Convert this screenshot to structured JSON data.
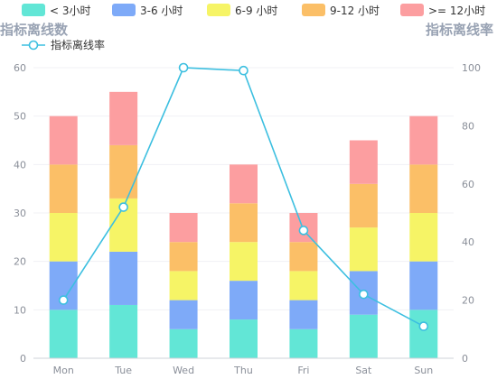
{
  "chart_data": {
    "type": "bar",
    "stacked": true,
    "categories": [
      "Mon",
      "Tue",
      "Wed",
      "Thu",
      "Fri",
      "Sat",
      "Sun"
    ],
    "series": [
      {
        "name": "< 3小时",
        "color": "#62e6d6",
        "values": [
          10,
          11,
          6,
          8,
          6,
          9,
          10
        ]
      },
      {
        "name": "3-6 小时",
        "color": "#7eaaf8",
        "values": [
          10,
          11,
          6,
          8,
          6,
          9,
          10
        ]
      },
      {
        "name": "6-9 小时",
        "color": "#f6f466",
        "values": [
          10,
          11,
          6,
          8,
          6,
          9,
          10
        ]
      },
      {
        "name": "9-12 小时",
        "color": "#fbbf67",
        "values": [
          10,
          11,
          6,
          8,
          6,
          9,
          10
        ]
      },
      {
        "name": ">= 12小时",
        "color": "#fc9ea0",
        "values": [
          10,
          11,
          6,
          8,
          6,
          9,
          10
        ]
      }
    ],
    "line_series": {
      "name": "指标离线率",
      "color": "#3cbfe0",
      "axis": "right",
      "values": [
        20,
        52,
        100,
        99,
        44,
        22,
        11
      ]
    },
    "ylabel": "指标离线数",
    "ylabel_right": "指标离线率",
    "ylim": [
      0,
      60
    ],
    "yticks": [
      0,
      10,
      20,
      30,
      40,
      50,
      60
    ],
    "ylim_right": [
      0,
      100
    ],
    "yticks_right": [
      0,
      20,
      40,
      60,
      80,
      100
    ],
    "grid": true,
    "legend_position": "top"
  }
}
